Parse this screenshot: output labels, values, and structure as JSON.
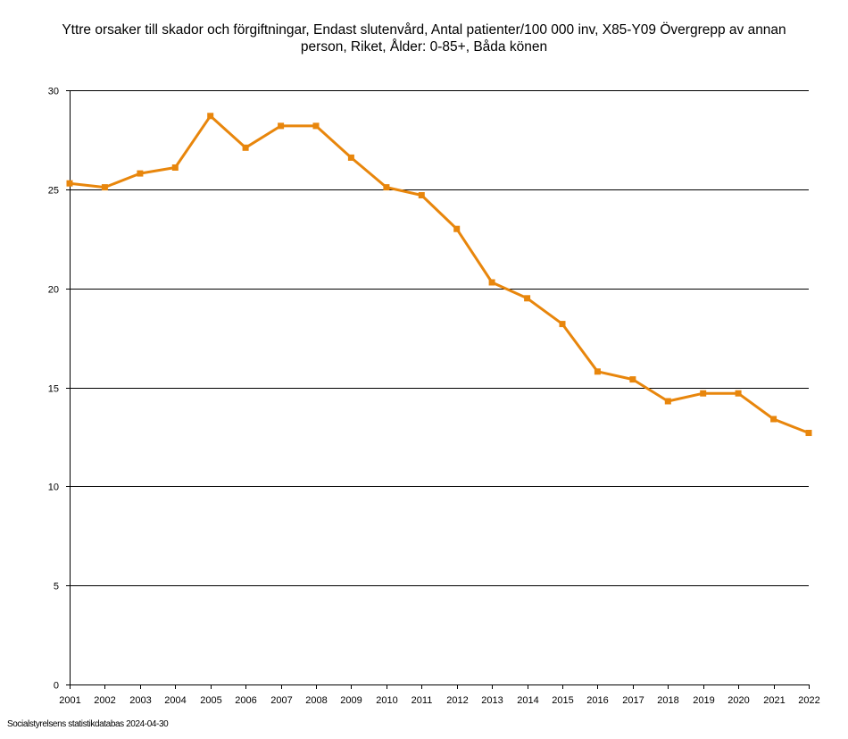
{
  "title_lines": [
    "Yttre orsaker till skador och förgiftningar, Endast slutenvård, Antal patienter/100 000 inv, X85-Y09 Övergrepp av annan",
    "person, Riket, Ålder: 0-85+, Båda könen"
  ],
  "source": "Socialstyrelsens statistikdatabas 2024-04-30",
  "chart_data": {
    "type": "line",
    "title": "Yttre orsaker till skador och förgiftningar, Endast slutenvård, Antal patienter/100 000 inv, X85-Y09 Övergrepp av annan person, Riket, Ålder: 0-85+, Båda könen",
    "xlabel": "",
    "ylabel": "",
    "ylim": [
      0,
      30
    ],
    "yticks": [
      0,
      5,
      10,
      15,
      20,
      25,
      30
    ],
    "grid": true,
    "categories": [
      "2001",
      "2002",
      "2003",
      "2004",
      "2005",
      "2006",
      "2007",
      "2008",
      "2009",
      "2010",
      "2011",
      "2012",
      "2013",
      "2014",
      "2015",
      "2016",
      "2017",
      "2018",
      "2019",
      "2020",
      "2021",
      "2022"
    ],
    "series": [
      {
        "name": "Båda könen",
        "color": "#E8860C",
        "values": [
          25.3,
          25.1,
          25.8,
          26.1,
          28.7,
          27.1,
          28.2,
          28.2,
          26.6,
          25.1,
          24.7,
          23.0,
          20.3,
          19.5,
          18.2,
          15.8,
          15.4,
          14.3,
          14.7,
          14.7,
          13.4,
          12.7
        ]
      }
    ]
  }
}
